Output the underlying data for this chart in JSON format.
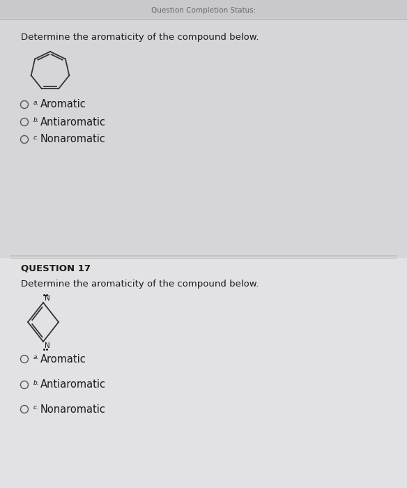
{
  "bg_top": "#d6d6d8",
  "bg_bottom": "#e2e2e4",
  "header_text": "Question Completion Status:",
  "q16_question": "Determine the aromaticity of the compound below.",
  "q17_label": "QUESTION 17",
  "q17_question": "Determine the aromaticity of the compound below.",
  "options_a": "Aromatic",
  "options_b": "Antiaromatic",
  "options_c": "Nonaromatic",
  "text_color": "#1a1a1a",
  "line_color": "#333333",
  "radio_color": "#555555",
  "divider_color": "#aaaaaa",
  "header_color": "#888888"
}
